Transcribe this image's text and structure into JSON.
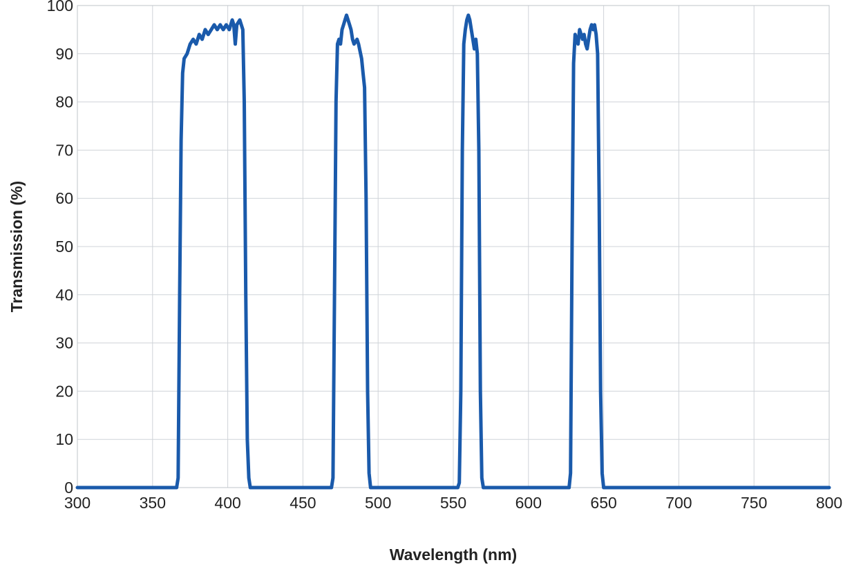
{
  "chart_data": {
    "type": "line",
    "xlabel": "Wavelength (nm)",
    "ylabel": "Transmission (%)",
    "xlim": [
      300,
      800
    ],
    "ylim": [
      0,
      100
    ],
    "x_ticks": [
      "300",
      "350",
      "400",
      "450",
      "500",
      "550",
      "600",
      "650",
      "700",
      "750",
      "800"
    ],
    "y_ticks": [
      "0",
      "10",
      "20",
      "30",
      "40",
      "50",
      "60",
      "70",
      "80",
      "90",
      "100"
    ],
    "grid": true,
    "line_color": "#1a5aab",
    "grid_color": "#cfd3d8",
    "series": [
      {
        "values": [
          [
            300,
            0
          ],
          [
            366,
            0
          ],
          [
            367,
            2
          ],
          [
            368,
            40
          ],
          [
            369,
            72
          ],
          [
            370,
            86
          ],
          [
            371,
            89
          ],
          [
            373,
            90
          ],
          [
            375,
            92
          ],
          [
            377,
            93
          ],
          [
            379,
            92
          ],
          [
            381,
            94
          ],
          [
            383,
            93
          ],
          [
            385,
            95
          ],
          [
            387,
            94
          ],
          [
            389,
            95
          ],
          [
            391,
            96
          ],
          [
            393,
            95
          ],
          [
            395,
            96
          ],
          [
            397,
            95
          ],
          [
            399,
            96
          ],
          [
            401,
            95
          ],
          [
            403,
            97
          ],
          [
            404,
            96
          ],
          [
            405,
            92
          ],
          [
            406,
            96
          ],
          [
            408,
            97
          ],
          [
            409,
            96
          ],
          [
            410,
            95
          ],
          [
            411,
            80
          ],
          [
            412,
            40
          ],
          [
            413,
            10
          ],
          [
            414,
            2
          ],
          [
            415,
            0
          ],
          [
            469,
            0
          ],
          [
            470,
            2
          ],
          [
            471,
            40
          ],
          [
            472,
            80
          ],
          [
            473,
            92
          ],
          [
            474,
            93
          ],
          [
            475,
            92
          ],
          [
            476,
            95
          ],
          [
            477,
            96
          ],
          [
            478,
            97
          ],
          [
            479,
            98
          ],
          [
            480,
            97
          ],
          [
            481,
            96
          ],
          [
            482,
            95
          ],
          [
            483,
            93
          ],
          [
            484,
            92
          ],
          [
            486,
            93
          ],
          [
            487,
            92
          ],
          [
            489,
            89
          ],
          [
            490,
            86
          ],
          [
            491,
            83
          ],
          [
            492,
            60
          ],
          [
            493,
            20
          ],
          [
            494,
            3
          ],
          [
            495,
            0
          ],
          [
            553,
            0
          ],
          [
            554,
            1
          ],
          [
            555,
            20
          ],
          [
            556,
            70
          ],
          [
            557,
            92
          ],
          [
            558,
            95
          ],
          [
            559,
            97
          ],
          [
            560,
            98
          ],
          [
            561,
            97
          ],
          [
            562,
            95
          ],
          [
            563,
            93
          ],
          [
            564,
            91
          ],
          [
            565,
            93
          ],
          [
            566,
            90
          ],
          [
            567,
            70
          ],
          [
            568,
            20
          ],
          [
            569,
            2
          ],
          [
            570,
            0
          ],
          [
            627,
            0
          ],
          [
            628,
            3
          ],
          [
            629,
            50
          ],
          [
            630,
            88
          ],
          [
            631,
            94
          ],
          [
            632,
            93
          ],
          [
            633,
            92
          ],
          [
            634,
            95
          ],
          [
            635,
            94
          ],
          [
            636,
            93
          ],
          [
            637,
            94
          ],
          [
            638,
            92
          ],
          [
            639,
            91
          ],
          [
            640,
            93
          ],
          [
            641,
            95
          ],
          [
            642,
            96
          ],
          [
            643,
            95
          ],
          [
            644,
            96
          ],
          [
            645,
            94
          ],
          [
            646,
            90
          ],
          [
            647,
            60
          ],
          [
            648,
            20
          ],
          [
            649,
            3
          ],
          [
            650,
            0
          ],
          [
            800,
            0
          ]
        ]
      }
    ]
  }
}
